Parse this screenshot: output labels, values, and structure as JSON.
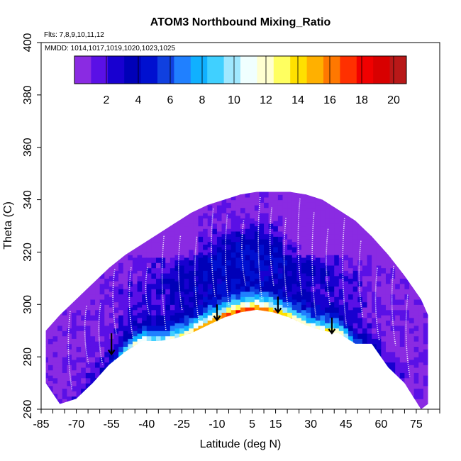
{
  "chart_data": {
    "type": "heatmap",
    "title": "ATOM3 Northbound Mixing_Ratio",
    "subtitle_flights": "Flts: 7,8,9,10,11,12",
    "subtitle_dates": "MMDD: 1014,1017,1019,1020,1023,1025",
    "xlabel": "Latitude (deg N)",
    "ylabel": "Theta (C)",
    "xlim": [
      -85,
      85
    ],
    "ylim": [
      260,
      400
    ],
    "x_tick_labels": [
      "-85",
      "-70",
      "-55",
      "-40",
      "-25",
      "-10",
      "5",
      "15",
      "30",
      "45",
      "60",
      "75"
    ],
    "x_tick_values": [
      -85,
      -70,
      -55,
      -40,
      -25,
      -10,
      5,
      15,
      30,
      45,
      60,
      75
    ],
    "y_tick_labels": [
      "260",
      "280",
      "300",
      "320",
      "340",
      "360",
      "380",
      "400"
    ],
    "y_tick_values": [
      260,
      280,
      300,
      320,
      340,
      360,
      380,
      400
    ],
    "colorbar": {
      "range": [
        0,
        20.8
      ],
      "tick_labels": [
        "2",
        "4",
        "6",
        "8",
        "10",
        "12",
        "14",
        "16",
        "18",
        "20"
      ],
      "tick_values": [
        2,
        4,
        6,
        8,
        10,
        12,
        14,
        16,
        18,
        20
      ],
      "colors": [
        "#8a2be2",
        "#5a10e6",
        "#1800d0",
        "#0000b8",
        "#0010d0",
        "#1040e0",
        "#2080ff",
        "#10b0ff",
        "#40d0ff",
        "#a0e8ff",
        "#f0ffff",
        "#ffffd0",
        "#ffff60",
        "#ffe000",
        "#ffb000",
        "#ff7800",
        "#ff3000",
        "#f00000",
        "#d80000",
        "#b81818"
      ]
    },
    "envelope": {
      "lat": [
        -83,
        -77,
        -70,
        -63,
        -56,
        -49,
        -42,
        -35,
        -28,
        -21,
        -14,
        -7,
        0,
        7,
        14,
        21,
        28,
        35,
        42,
        49,
        56,
        63,
        70,
        77,
        80
      ],
      "theta_top": [
        290,
        296,
        302,
        308,
        314,
        319,
        323,
        327,
        331,
        335,
        338,
        340,
        342,
        343,
        343,
        343,
        342,
        340,
        336,
        332,
        326,
        319,
        311,
        302,
        296
      ],
      "theta_bottom": [
        270,
        262,
        264,
        270,
        277,
        282,
        286,
        286,
        287,
        289,
        292,
        295,
        297,
        298,
        297,
        295,
        292,
        290,
        289,
        285,
        285,
        276,
        270,
        260,
        262
      ]
    },
    "annotations": [
      {
        "type": "arrow-down",
        "lat": -55,
        "theta_from": 289,
        "theta_to": 281
      },
      {
        "type": "arrow-down",
        "lat": -10,
        "theta_from": 300,
        "theta_to": 294
      },
      {
        "type": "arrow-down",
        "lat": 16,
        "theta_from": 303,
        "theta_to": 297
      },
      {
        "type": "arrow-down",
        "lat": 39,
        "theta_from": 295,
        "theta_to": 289
      }
    ]
  }
}
